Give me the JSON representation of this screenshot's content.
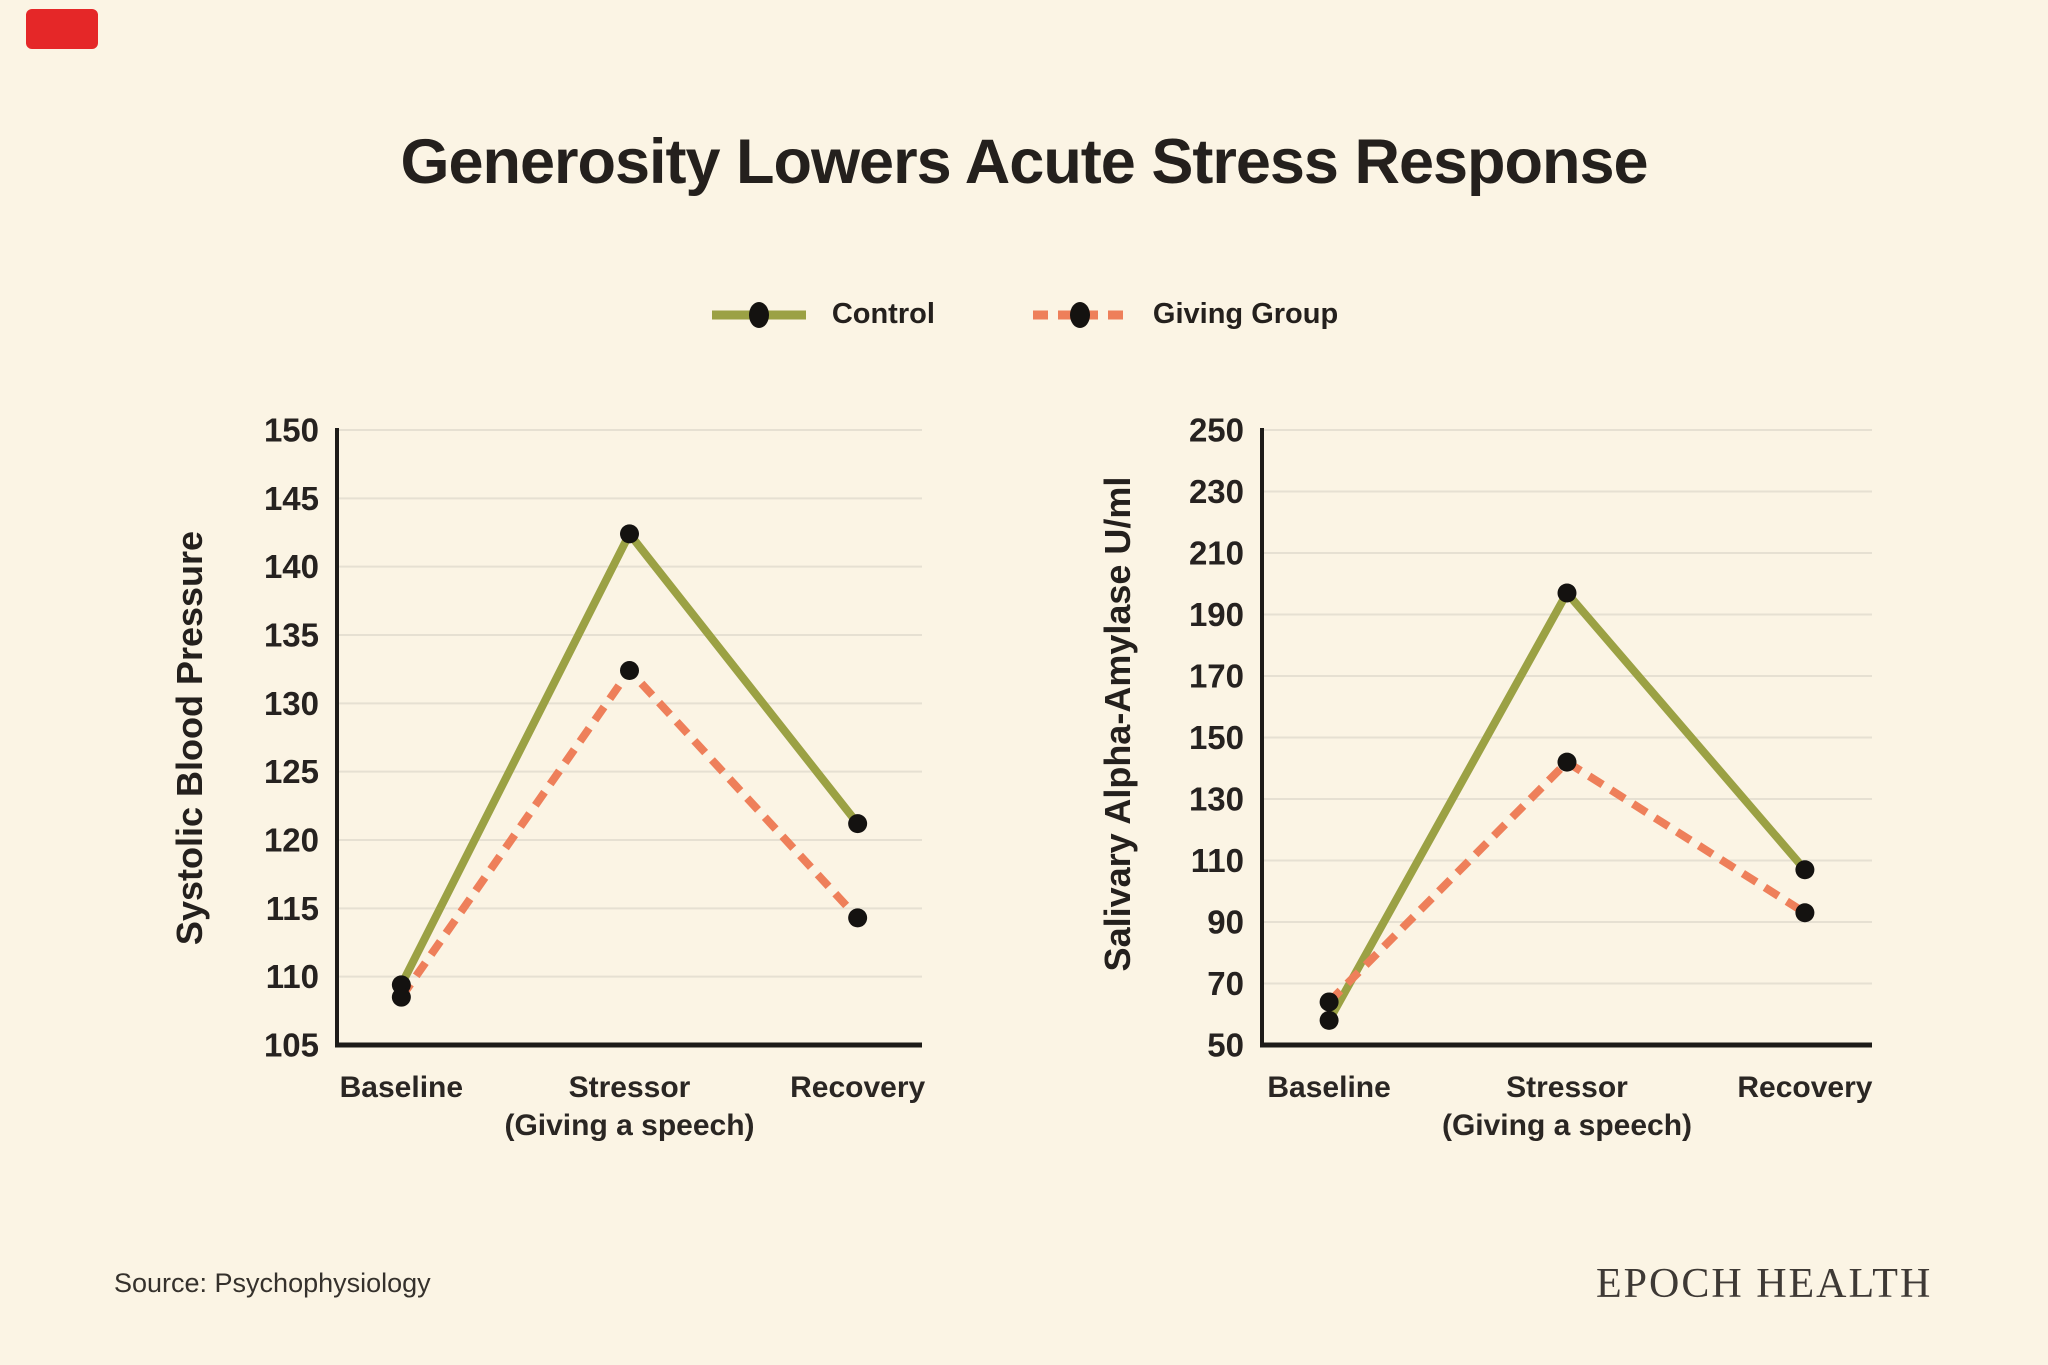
{
  "page": {
    "background": "#fbf4e4",
    "title": "Generosity Lowers Acute Stress Response",
    "source": "Source: Psychophysiology",
    "brand": "EPOCH HEALTH",
    "corner_mark_color": "#e52728",
    "axis_color": "#1d1b18",
    "grid_color": "#e6e0d2",
    "dot_color": "#141210",
    "text_color": "#24201d"
  },
  "legend": {
    "items": [
      {
        "label": "Control",
        "color": "#9ba144",
        "style": "solid"
      },
      {
        "label": "Giving Group",
        "color": "#ee7f5a",
        "style": "dashed"
      }
    ]
  },
  "chart_data": [
    {
      "type": "line",
      "ylabel": "Systolic Blood Pressure",
      "categories": [
        "Baseline",
        "Stressor",
        "Recovery"
      ],
      "category_sublabels": [
        "",
        "(Giving a speech)",
        ""
      ],
      "ylim": [
        105,
        150
      ],
      "ytick_step": 5,
      "grid": true,
      "legend_position": "top-center",
      "series": [
        {
          "name": "Control",
          "style": "solid",
          "color": "#9ba144",
          "values": [
            109.4,
            142.4,
            121.2
          ]
        },
        {
          "name": "Giving Group",
          "style": "dashed",
          "color": "#ee7f5a",
          "values": [
            108.5,
            132.4,
            114.3
          ]
        }
      ]
    },
    {
      "type": "line",
      "ylabel": "Salivary Alpha-Amylase U/ml",
      "categories": [
        "Baseline",
        "Stressor",
        "Recovery"
      ],
      "category_sublabels": [
        "",
        "(Giving a speech)",
        ""
      ],
      "ylim": [
        50,
        250
      ],
      "ytick_step": 20,
      "grid": true,
      "legend_position": "top-center",
      "series": [
        {
          "name": "Control",
          "style": "solid",
          "color": "#9ba144",
          "values": [
            58,
            197,
            107
          ]
        },
        {
          "name": "Giving Group",
          "style": "dashed",
          "color": "#ee7f5a",
          "values": [
            64,
            142,
            93
          ]
        }
      ]
    }
  ]
}
